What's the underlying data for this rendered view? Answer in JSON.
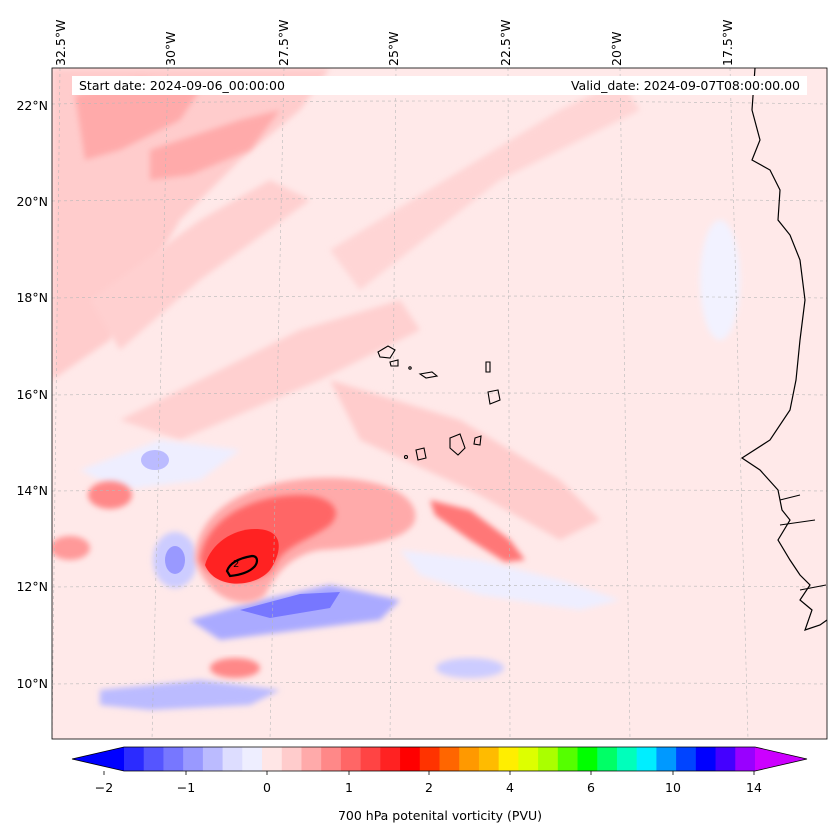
{
  "map": {
    "start_date_text": "Start date: 2024-09-06_00:00:00",
    "valid_date_text": "Valid_date: 2024-09-07T08:00:00.00",
    "lon_labels": [
      "32.5°W",
      "30°W",
      "27.5°W",
      "25°W",
      "22.5°W",
      "20°W",
      "17.5°W"
    ],
    "lat_labels": [
      "22°N",
      "20°N",
      "18°N",
      "16°N",
      "14°N",
      "12°N",
      "10°N"
    ],
    "contour_label": "2",
    "extent": {
      "lon_min": -32.6,
      "lon_max": -15.5,
      "lat_min": 8.9,
      "lat_max": 22.8
    },
    "gridlines": true
  },
  "colorbar": {
    "title": "700 hPa potenital vorticity (PVU)",
    "tick_labels": [
      "−2",
      "−1",
      "0",
      "1",
      "2",
      "4",
      "6",
      "10",
      "14"
    ],
    "extend": "both",
    "colors": [
      "#0000ff",
      "#2b2bff",
      "#5555ff",
      "#7777ff",
      "#9999ff",
      "#bbbbff",
      "#ddddff",
      "#eeeeff",
      "#ffe6e6",
      "#ffcccc",
      "#ffaaaa",
      "#ff8888",
      "#ff6666",
      "#ff4444",
      "#ff2222",
      "#ff0000",
      "#ff3300",
      "#ff6600",
      "#ff9900",
      "#ffbb00",
      "#ffee00",
      "#ddff00",
      "#aaff00",
      "#55ff00",
      "#00ff00",
      "#00ff66",
      "#00ffbb",
      "#00eeff",
      "#0099ff",
      "#0044ff",
      "#0000ff",
      "#4400ff",
      "#9900ff",
      "#cc00ff"
    ]
  }
}
